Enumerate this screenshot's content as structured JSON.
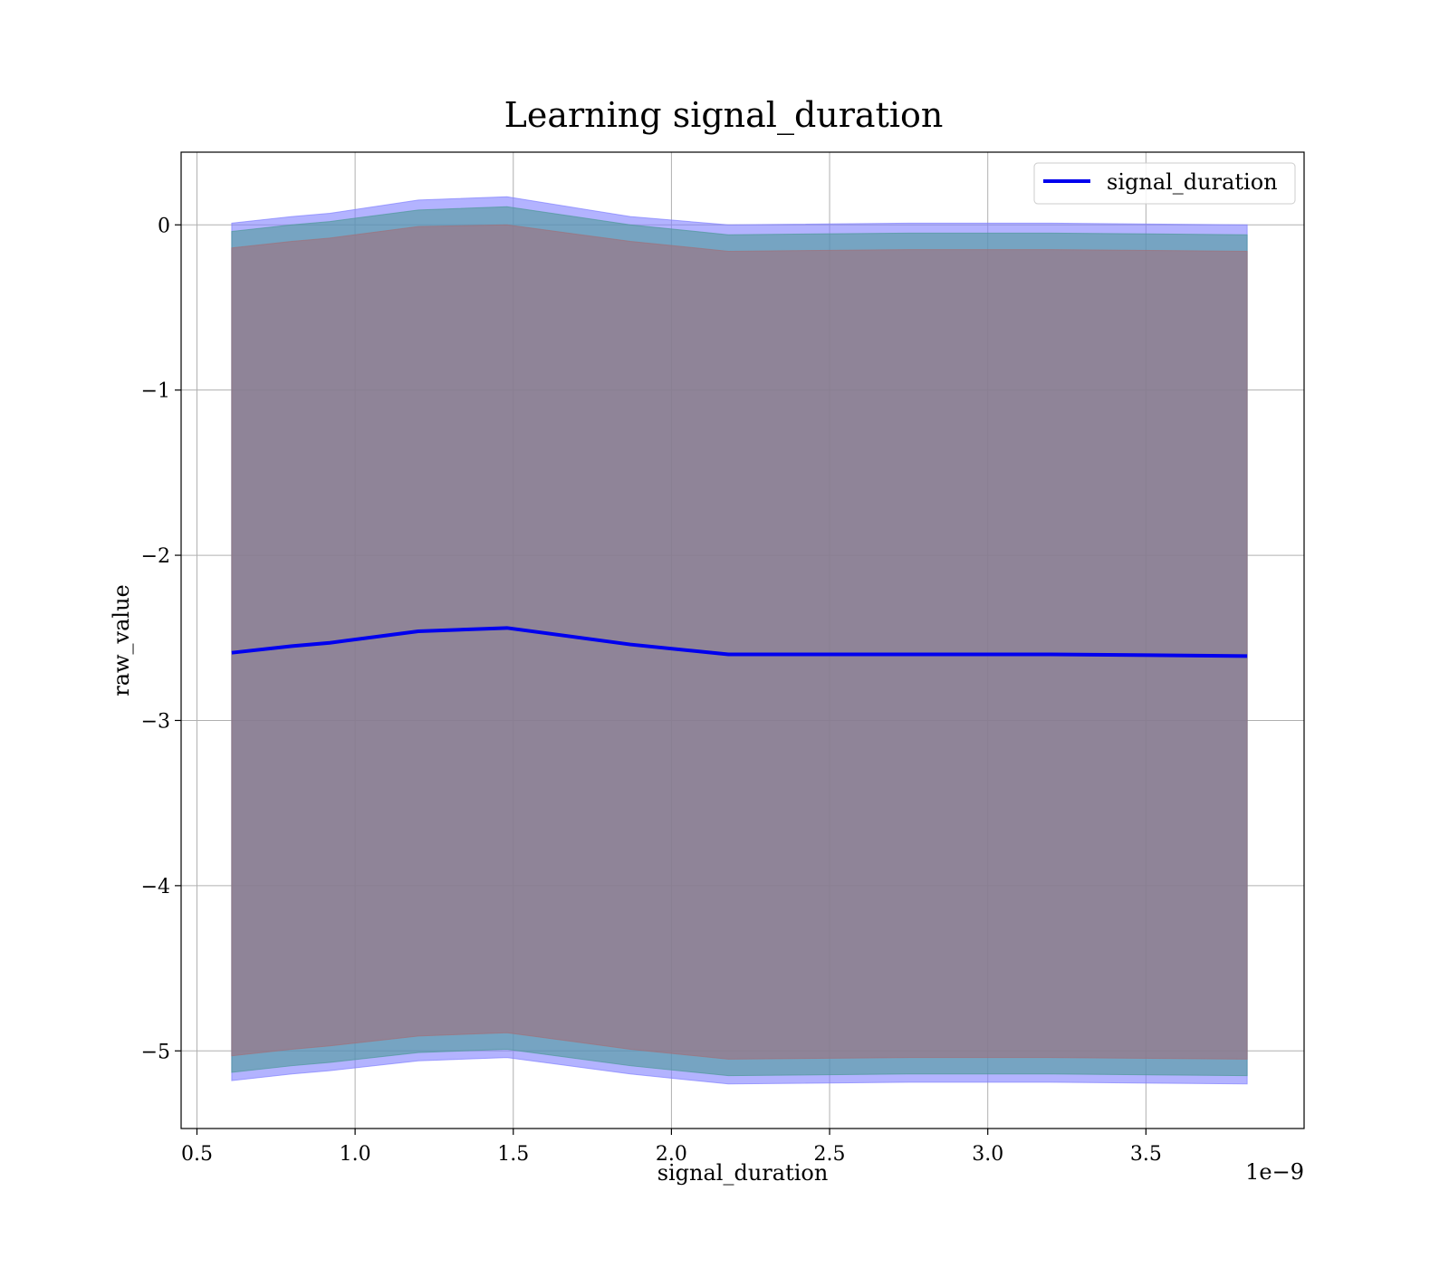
{
  "chart_data": {
    "type": "line",
    "title": "Learning signal_duration",
    "xlabel": "signal_duration",
    "ylabel": "raw_value",
    "x_offset_label": "1e−9",
    "xlim": [
      0.45,
      4.0
    ],
    "ylim": [
      -5.47,
      0.44
    ],
    "grid": true,
    "legend_position": "top-right",
    "x_ticks": [
      0.5,
      1.0,
      1.5,
      2.0,
      2.5,
      3.0,
      3.5
    ],
    "x_tick_labels": [
      "0.5",
      "1.0",
      "1.5",
      "2.0",
      "2.5",
      "3.0",
      "3.5"
    ],
    "y_ticks": [
      0,
      -1,
      -2,
      -3,
      -4,
      -5
    ],
    "y_tick_labels": [
      "0",
      "−1",
      "−2",
      "−3",
      "−4",
      "−5"
    ],
    "x": [
      0.61,
      0.8,
      0.92,
      1.2,
      1.48,
      1.87,
      2.18,
      2.75,
      3.2,
      3.82
    ],
    "series": [
      {
        "name": "signal_duration",
        "color": "#0000ee",
        "values": [
          -2.59,
          -2.55,
          -2.53,
          -2.46,
          -2.44,
          -2.54,
          -2.6,
          -2.6,
          -2.6,
          -2.61
        ]
      }
    ],
    "bands": [
      {
        "color": "#8080ff",
        "upper": [
          0.01,
          0.05,
          0.07,
          0.15,
          0.17,
          0.05,
          0.0,
          0.01,
          0.01,
          0.0
        ],
        "lower": [
          -5.18,
          -5.14,
          -5.12,
          -5.06,
          -5.04,
          -5.14,
          -5.2,
          -5.19,
          -5.19,
          -5.2
        ]
      },
      {
        "color": "#4d9999",
        "upper": [
          -0.04,
          0.0,
          0.02,
          0.09,
          0.11,
          0.0,
          -0.06,
          -0.05,
          -0.05,
          -0.06
        ],
        "lower": [
          -5.13,
          -5.09,
          -5.07,
          -5.01,
          -4.99,
          -5.09,
          -5.15,
          -5.14,
          -5.14,
          -5.15
        ]
      },
      {
        "color": "#a0707b",
        "upper": [
          -0.14,
          -0.1,
          -0.08,
          -0.01,
          0.0,
          -0.1,
          -0.16,
          -0.15,
          -0.15,
          -0.16
        ],
        "lower": [
          -5.03,
          -4.99,
          -4.97,
          -4.91,
          -4.89,
          -4.99,
          -5.05,
          -5.04,
          -5.04,
          -5.05
        ]
      }
    ]
  }
}
